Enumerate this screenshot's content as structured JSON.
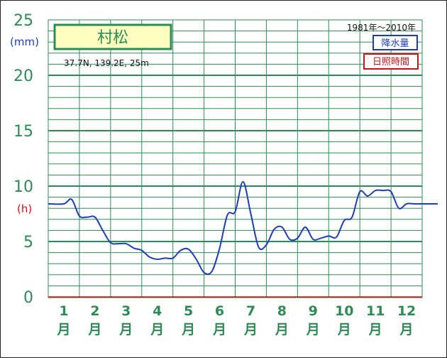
{
  "chart_data": {
    "type": "line",
    "title": "村松",
    "location": "37.7N,  139.2E,  25m",
    "period": "1981年〜2010年",
    "legend": [
      {
        "label": "降水量",
        "color": "#1e3cb4"
      },
      {
        "label": "日照時間",
        "color": "#c81414"
      }
    ],
    "left_axis_unit_top": "(mm)",
    "left_axis_unit_lower": "(h)",
    "yticks": [
      "0",
      "5",
      "10",
      "15",
      "20",
      "25"
    ],
    "ylim": [
      0,
      25
    ],
    "months": [
      {
        "num": "1",
        "char": "月"
      },
      {
        "num": "2",
        "char": "月"
      },
      {
        "num": "3",
        "char": "月"
      },
      {
        "num": "4",
        "char": "月"
      },
      {
        "num": "5",
        "char": "月"
      },
      {
        "num": "6",
        "char": "月"
      },
      {
        "num": "7",
        "char": "月"
      },
      {
        "num": "8",
        "char": "月"
      },
      {
        "num": "9",
        "char": "月"
      },
      {
        "num": "10",
        "char": "月"
      },
      {
        "num": "11",
        "char": "月"
      },
      {
        "num": "12",
        "char": "月"
      }
    ],
    "series": [
      {
        "name": "降水量",
        "color": "#1e3cb4",
        "x": [
          0.5,
          0.75,
          1.0,
          1.25,
          1.5,
          1.75,
          2.0,
          2.25,
          2.5,
          2.75,
          3.0,
          3.25,
          3.5,
          3.75,
          4.0,
          4.25,
          4.5,
          4.75,
          5.0,
          5.25,
          5.5,
          5.75,
          6.0,
          6.25,
          6.5,
          6.75,
          7.0,
          7.25,
          7.5,
          7.75,
          8.0,
          8.25,
          8.5,
          8.75,
          9.0,
          9.25,
          9.5,
          9.75,
          10.0,
          10.25,
          10.5,
          10.75,
          11.0,
          11.25,
          11.5,
          11.75,
          12.0,
          12.25,
          12.5
        ],
        "values": [
          8.4,
          8.8,
          7.3,
          7.2,
          7.2,
          6.0,
          4.9,
          4.8,
          4.8,
          4.4,
          4.2,
          3.6,
          3.4,
          3.5,
          3.5,
          4.2,
          4.3,
          3.4,
          2.2,
          2.3,
          4.4,
          7.4,
          7.7,
          10.4,
          7.5,
          4.5,
          4.7,
          6.1,
          6.3,
          5.2,
          5.3,
          6.3,
          5.2,
          5.3,
          5.5,
          5.4,
          6.9,
          7.2,
          9.5,
          9.1,
          9.6,
          9.6,
          9.5,
          8.0,
          8.4,
          8.4,
          8.4,
          8.4,
          8.4
        ]
      }
    ]
  }
}
